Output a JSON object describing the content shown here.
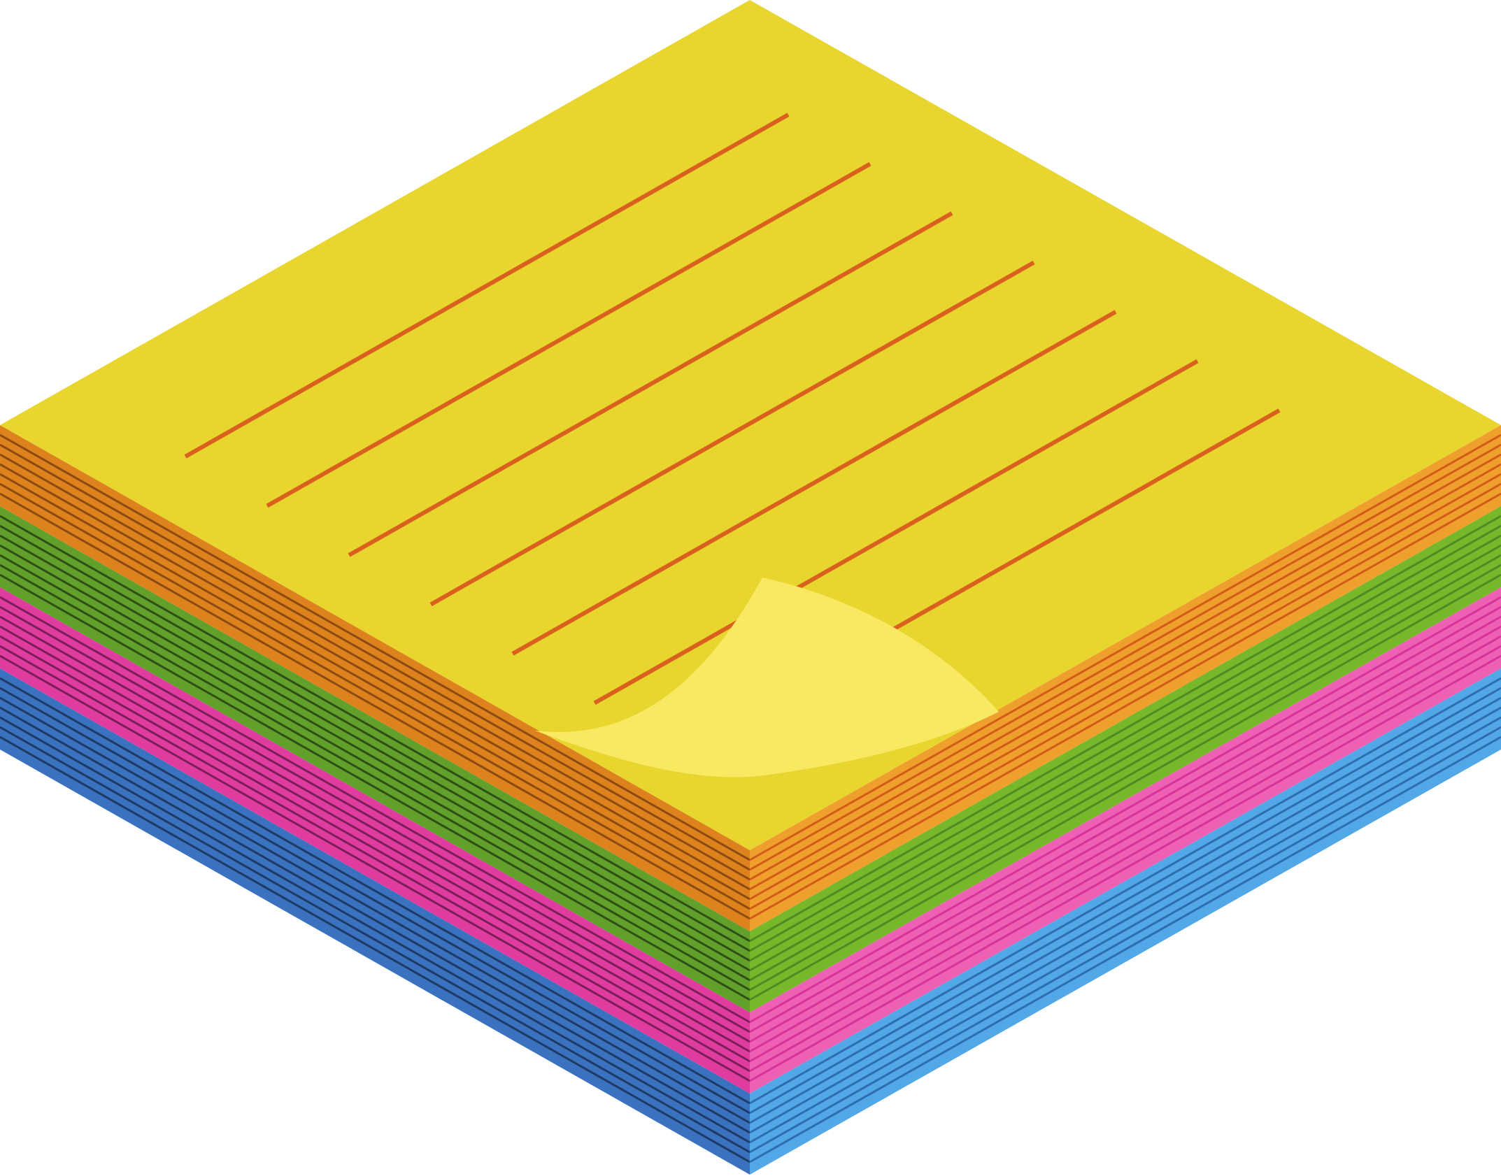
{
  "illustration": {
    "subject": "sticky-note-pad",
    "colors": {
      "background": "#ffffff",
      "top_sheet": "#E8D52D",
      "top_sheet_lines": "#D9601E",
      "peeled_corner": "#F8E862",
      "orange_left": "#DE821E",
      "orange_right": "#EFA02C",
      "orange_left_stripe": "#8A4A12",
      "orange_right_stripe": "#D25A18",
      "green_left": "#62A02C",
      "green_right": "#76B82A",
      "green_left_stripe": "#2E4E16",
      "green_right_stripe": "#4E8A24",
      "pink_left": "#E03CA0",
      "pink_right": "#EE60B4",
      "pink_left_stripe": "#7A1E58",
      "pink_right_stripe": "#D8329A",
      "blue_left": "#3A72C0",
      "blue_right": "#52A8E6",
      "blue_left_stripe": "#1E3A64",
      "blue_right_stripe": "#2E6CB0"
    },
    "sheet_colors_top_to_bottom": [
      "orange",
      "green",
      "pink",
      "blue"
    ],
    "written_line_count": 7
  }
}
